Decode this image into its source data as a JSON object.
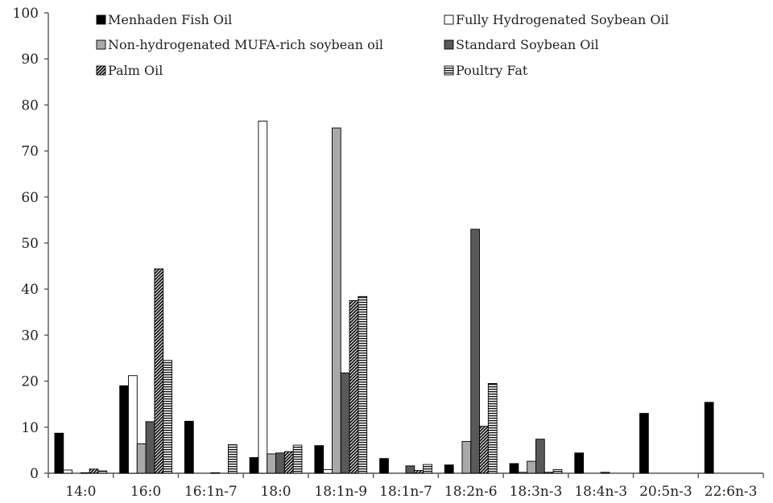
{
  "chart_data": {
    "type": "bar",
    "title": "",
    "xlabel": "",
    "ylabel": "",
    "ylim": [
      0,
      100
    ],
    "yticks": [
      0,
      10,
      20,
      30,
      40,
      50,
      60,
      70,
      80,
      90,
      100
    ],
    "grid": false,
    "legend_position": "top",
    "categories": [
      "14:0",
      "16:0",
      "16:1n-7",
      "18:0",
      "18:1n-9",
      "18:1n-7",
      "18:2n-6",
      "18:3n-3",
      "18:4n-3",
      "20:5n-3",
      "22:6n-3"
    ],
    "series": [
      {
        "name": "Menhaden Fish Oil",
        "pattern": "solid-black",
        "values": [
          8.7,
          19.0,
          11.3,
          3.4,
          6.0,
          3.2,
          1.8,
          2.1,
          4.4,
          13.0,
          15.4
        ]
      },
      {
        "name": "Fully Hydrogenated Soybean Oil",
        "pattern": "white",
        "values": [
          0.7,
          21.2,
          0,
          76.5,
          0.8,
          0,
          0,
          0.2,
          0,
          0,
          0
        ]
      },
      {
        "name": "Non-hydrogenated MUFA-rich soybean oil",
        "pattern": "light-gray",
        "values": [
          0,
          6.4,
          0,
          4.2,
          75.0,
          0,
          6.9,
          2.6,
          0,
          0,
          0
        ]
      },
      {
        "name": "Standard Soybean Oil",
        "pattern": "dark-gray",
        "values": [
          0.1,
          11.2,
          0.1,
          4.4,
          21.8,
          1.6,
          53.0,
          7.4,
          0.2,
          0,
          0
        ]
      },
      {
        "name": "Palm Oil",
        "pattern": "diagonal-hatch",
        "values": [
          0.9,
          44.4,
          0,
          4.7,
          37.5,
          0.6,
          10.2,
          0.2,
          0,
          0,
          0
        ]
      },
      {
        "name": "Poultry Fat",
        "pattern": "horizontal-stripes",
        "values": [
          0.5,
          24.5,
          6.2,
          6.1,
          38.4,
          1.9,
          19.5,
          0.8,
          0,
          0,
          0
        ]
      }
    ]
  }
}
